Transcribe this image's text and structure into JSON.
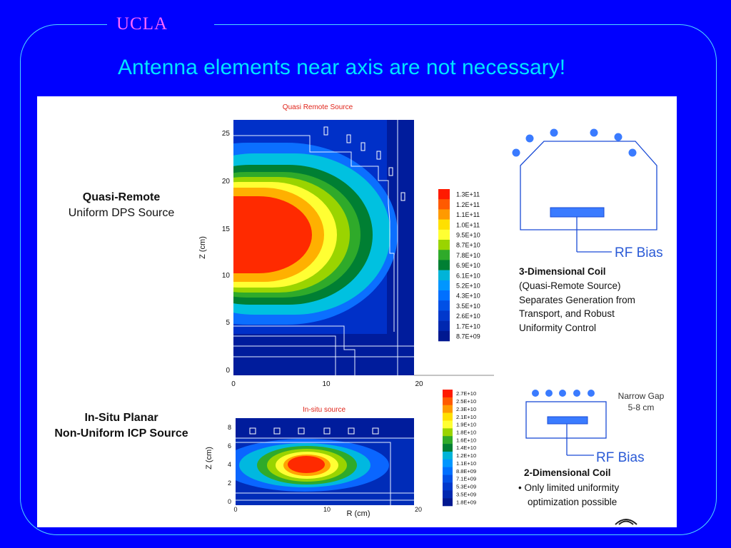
{
  "slide": {
    "logo": "UCLA",
    "title": "Antenna elements near axis are not necessary!"
  },
  "top_case": {
    "label_line1": "Quasi-Remote",
    "label_line2": "Uniform DPS Source",
    "plot_title": "Quasi Remote Source",
    "y_axis_label": "Z (cm)",
    "y_ticks": [
      "25",
      "20",
      "15",
      "10",
      "5",
      "0"
    ],
    "x_ticks": [
      "0",
      "10",
      "20"
    ],
    "colorbar": {
      "labels": [
        "1.3E+11",
        "1.2E+11",
        "1.1E+11",
        "1.0E+11",
        "9.5E+10",
        "8.7E+10",
        "7.8E+10",
        "6.9E+10",
        "6.1E+10",
        "5.2E+10",
        "4.3E+10",
        "3.5E+10",
        "2.6E+10",
        "1.7E+10",
        "8.7E+09"
      ],
      "colors": [
        "#ff1a00",
        "#ff5a00",
        "#ff9a00",
        "#ffe000",
        "#ffff33",
        "#9ad400",
        "#2faa2a",
        "#007f33",
        "#00b4d8",
        "#0096ff",
        "#0070ff",
        "#0050e6",
        "#0038cc",
        "#0028b0",
        "#001890"
      ]
    },
    "coil_title": "3-Dimensional Coil",
    "coil_desc": [
      "(Quasi-Remote Source)",
      "Separates Generation from",
      "Transport, and Robust",
      "Uniformity Control"
    ],
    "rf_bias": "RF Bias"
  },
  "bottom_case": {
    "label_line1": "In-Situ Planar",
    "label_line2": "Non-Uniform ICP Source",
    "plot_title": "In-situ source",
    "y_axis_label": "Z (cm)",
    "x_axis_label": "R (cm)",
    "y_ticks": [
      "8",
      "6",
      "4",
      "2",
      "0"
    ],
    "x_ticks": [
      "0",
      "10",
      "20"
    ],
    "colorbar": {
      "labels": [
        "2.7E+10",
        "2.5E+10",
        "2.3E+10",
        "2.1E+10",
        "1.9E+10",
        "1.8E+10",
        "1.6E+10",
        "1.4E+10",
        "1.2E+10",
        "1.1E+10",
        "8.8E+09",
        "7.1E+09",
        "5.3E+09",
        "3.5E+09",
        "1.8E+09"
      ],
      "colors": [
        "#ff1a00",
        "#ff5a00",
        "#ff9a00",
        "#ffe000",
        "#ffff33",
        "#9ad400",
        "#2faa2a",
        "#007f33",
        "#00b4d8",
        "#0096ff",
        "#0070ff",
        "#0050e6",
        "#0038cc",
        "#0028b0",
        "#001890"
      ]
    },
    "gap_label_line1": "Narrow Gap",
    "gap_label_line2": "5-8 cm",
    "coil_title": "2-Dimensional Coil",
    "coil_desc": [
      "• Only limited uniformity",
      "optimization possible"
    ],
    "rf_bias": "RF Bias"
  }
}
